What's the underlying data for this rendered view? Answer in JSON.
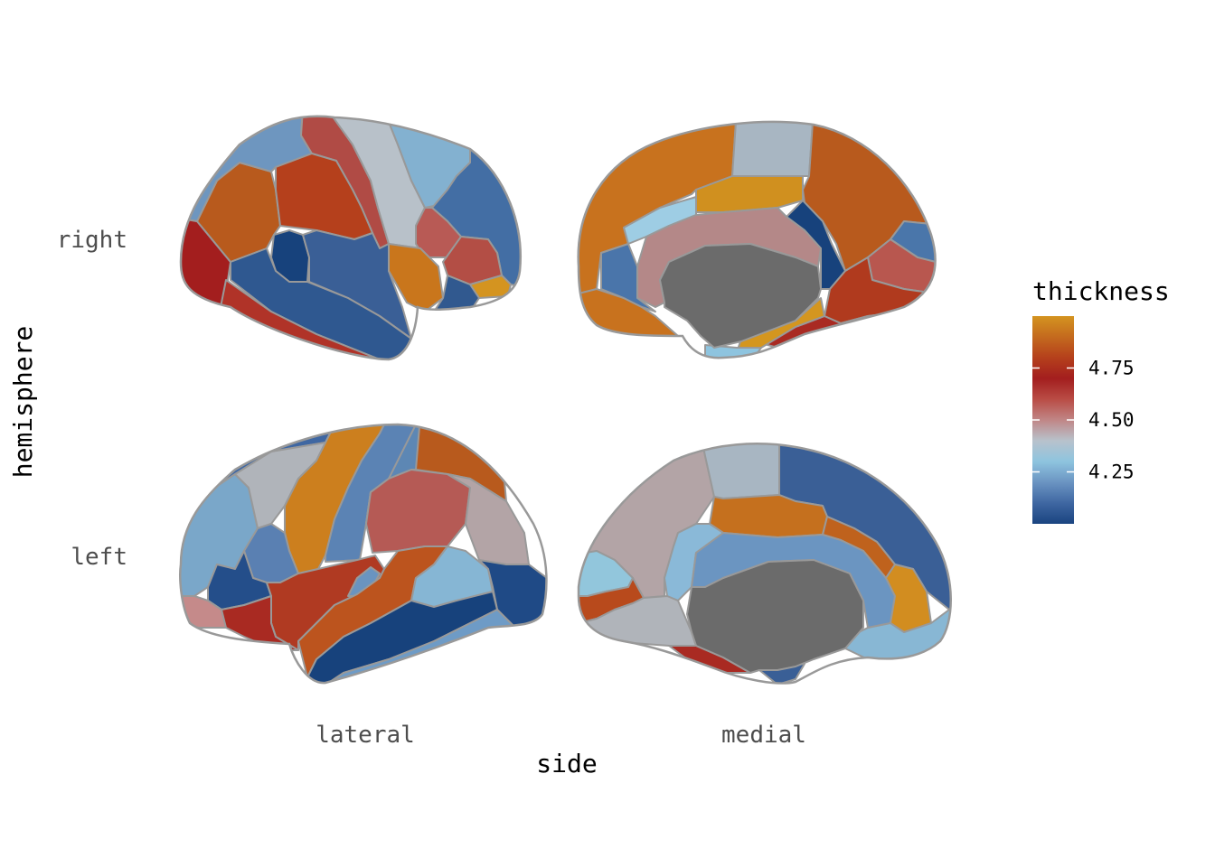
{
  "chart_data": {
    "type": "heatmap",
    "subtype": "brain-atlas",
    "xlabel": "side",
    "ylabel": "hemisphere",
    "x_categories": [
      "lateral",
      "medial"
    ],
    "y_categories": [
      "right",
      "left"
    ],
    "legend": {
      "title": "thickness",
      "ticks": [
        "4.75",
        "4.50",
        "4.25"
      ],
      "tick_values": [
        4.75,
        4.5,
        4.25
      ],
      "range": [
        4.0,
        5.0
      ],
      "placement": "right",
      "colors": [
        "#1a4480",
        "#3f67a2",
        "#6b94c2",
        "#8ec4df",
        "#b8c2cc",
        "#c08686",
        "#b94c45",
        "#a31e1e",
        "#b5401c",
        "#c46a1e",
        "#d49420"
      ]
    },
    "panels": [
      {
        "hemisphere": "right",
        "side": "lateral",
        "regions": [
          {
            "name": "lateral-orbitofrontal",
            "color": "#a31e1e"
          },
          {
            "name": "rostral-middle-frontal",
            "color": "#b85a1d"
          },
          {
            "name": "superior-frontal",
            "color": "#6e96bf"
          },
          {
            "name": "precentral",
            "color": "#b04b45"
          },
          {
            "name": "caudal-middle-frontal",
            "color": "#b5401c"
          },
          {
            "name": "postcentral",
            "color": "#b8c1c9"
          },
          {
            "name": "supramarginal",
            "color": "#83b1d0"
          },
          {
            "name": "superior-parietal",
            "color": "#436ea4"
          },
          {
            "name": "inferior-parietal",
            "color": "#b85a55"
          },
          {
            "name": "pars-triangularis",
            "color": "#17427c"
          },
          {
            "name": "pars-opercularis",
            "color": "#3a5f96"
          },
          {
            "name": "superior-temporal",
            "color": "#c9761c"
          },
          {
            "name": "middle-temporal",
            "color": "#2f5890"
          },
          {
            "name": "inferior-temporal",
            "color": "#b03328"
          },
          {
            "name": "lateral-occipital",
            "color": "#b34e45"
          },
          {
            "name": "transverse-temporal",
            "color": "#d49420"
          },
          {
            "name": "pars-orbitalis",
            "color": "#31598f"
          }
        ]
      },
      {
        "hemisphere": "right",
        "side": "medial",
        "regions": [
          {
            "name": "superior-frontal",
            "color": "#c8721e"
          },
          {
            "name": "paracentral",
            "color": "#a8b6c2"
          },
          {
            "name": "precuneus",
            "color": "#b85a1d"
          },
          {
            "name": "posterior-cingulate",
            "color": "#d0901f"
          },
          {
            "name": "isthmus-cingulate",
            "color": "#17427c"
          },
          {
            "name": "caudal-anterior-cingulate",
            "color": "#9ecde4"
          },
          {
            "name": "corpus-callosum",
            "color": "#b48888"
          },
          {
            "name": "cuneus",
            "color": "#4a76aa"
          },
          {
            "name": "pericalcarine",
            "color": "#b8574f"
          },
          {
            "name": "lingual",
            "color": "#b03a1e"
          },
          {
            "name": "medial-orbitofrontal",
            "color": "#c8721e"
          },
          {
            "name": "rostral-anterior-cingulate",
            "color": "#4a75aa"
          },
          {
            "name": "fusiform",
            "color": "#a92a22"
          },
          {
            "name": "parahippocampal",
            "color": "#d4961f"
          },
          {
            "name": "entorhinal",
            "color": "#8ec4df"
          },
          {
            "name": "unknown",
            "color": "#6b6b6b"
          }
        ]
      },
      {
        "hemisphere": "left",
        "side": "lateral",
        "regions": [
          {
            "name": "superior-frontal",
            "color": "#3f67a2"
          },
          {
            "name": "rostral-middle-frontal",
            "color": "#7aa7c9"
          },
          {
            "name": "caudal-middle-frontal",
            "color": "#b0b4ba"
          },
          {
            "name": "precentral",
            "color": "#cc7f1e"
          },
          {
            "name": "postcentral",
            "color": "#5b83b4"
          },
          {
            "name": "superior-parietal",
            "color": "#5d87b4"
          },
          {
            "name": "paracentral-top",
            "color": "#b85a1d"
          },
          {
            "name": "supramarginal",
            "color": "#b55a55"
          },
          {
            "name": "inferior-parietal",
            "color": "#b3a4a6"
          },
          {
            "name": "pars-triangularis",
            "color": "#5a80b2"
          },
          {
            "name": "pars-orbitalis",
            "color": "#244e8a"
          },
          {
            "name": "lateral-orbitofrontal",
            "color": "#c58a8a"
          },
          {
            "name": "pars-opercularis",
            "color": "#b03a22"
          },
          {
            "name": "insula",
            "color": "#a92a22"
          },
          {
            "name": "transverse-temporal",
            "color": "#6a94c0"
          },
          {
            "name": "superior-temporal",
            "color": "#bc541e"
          },
          {
            "name": "bankssts",
            "color": "#86b6d4"
          },
          {
            "name": "lateral-occipital",
            "color": "#1f4a86"
          },
          {
            "name": "middle-temporal",
            "color": "#17427c"
          },
          {
            "name": "inferior-temporal",
            "color": "#6e9bc6"
          }
        ]
      },
      {
        "hemisphere": "left",
        "side": "medial",
        "regions": [
          {
            "name": "precuneus",
            "color": "#b3a4a6"
          },
          {
            "name": "paracentral",
            "color": "#a8b6c2"
          },
          {
            "name": "superior-frontal",
            "color": "#3a5f96"
          },
          {
            "name": "posterior-cingulate",
            "color": "#c5701e"
          },
          {
            "name": "caudal-anterior-cingulate",
            "color": "#bf621d"
          },
          {
            "name": "isthmus-cingulate",
            "color": "#8ab9d8"
          },
          {
            "name": "corpus-callosum",
            "color": "#6b95c1"
          },
          {
            "name": "rostral-anterior-cingulate",
            "color": "#d28d20"
          },
          {
            "name": "medial-orbitofrontal",
            "color": "#88b7d4"
          },
          {
            "name": "cuneus",
            "color": "#92c6dc"
          },
          {
            "name": "pericalcarine",
            "color": "#b84a1c"
          },
          {
            "name": "lingual",
            "color": "#b0b4ba"
          },
          {
            "name": "fusiform",
            "color": "#a92a22"
          },
          {
            "name": "parahippocampal",
            "color": "#3a5f96"
          },
          {
            "name": "unknown",
            "color": "#6b6b6b"
          }
        ]
      }
    ]
  }
}
